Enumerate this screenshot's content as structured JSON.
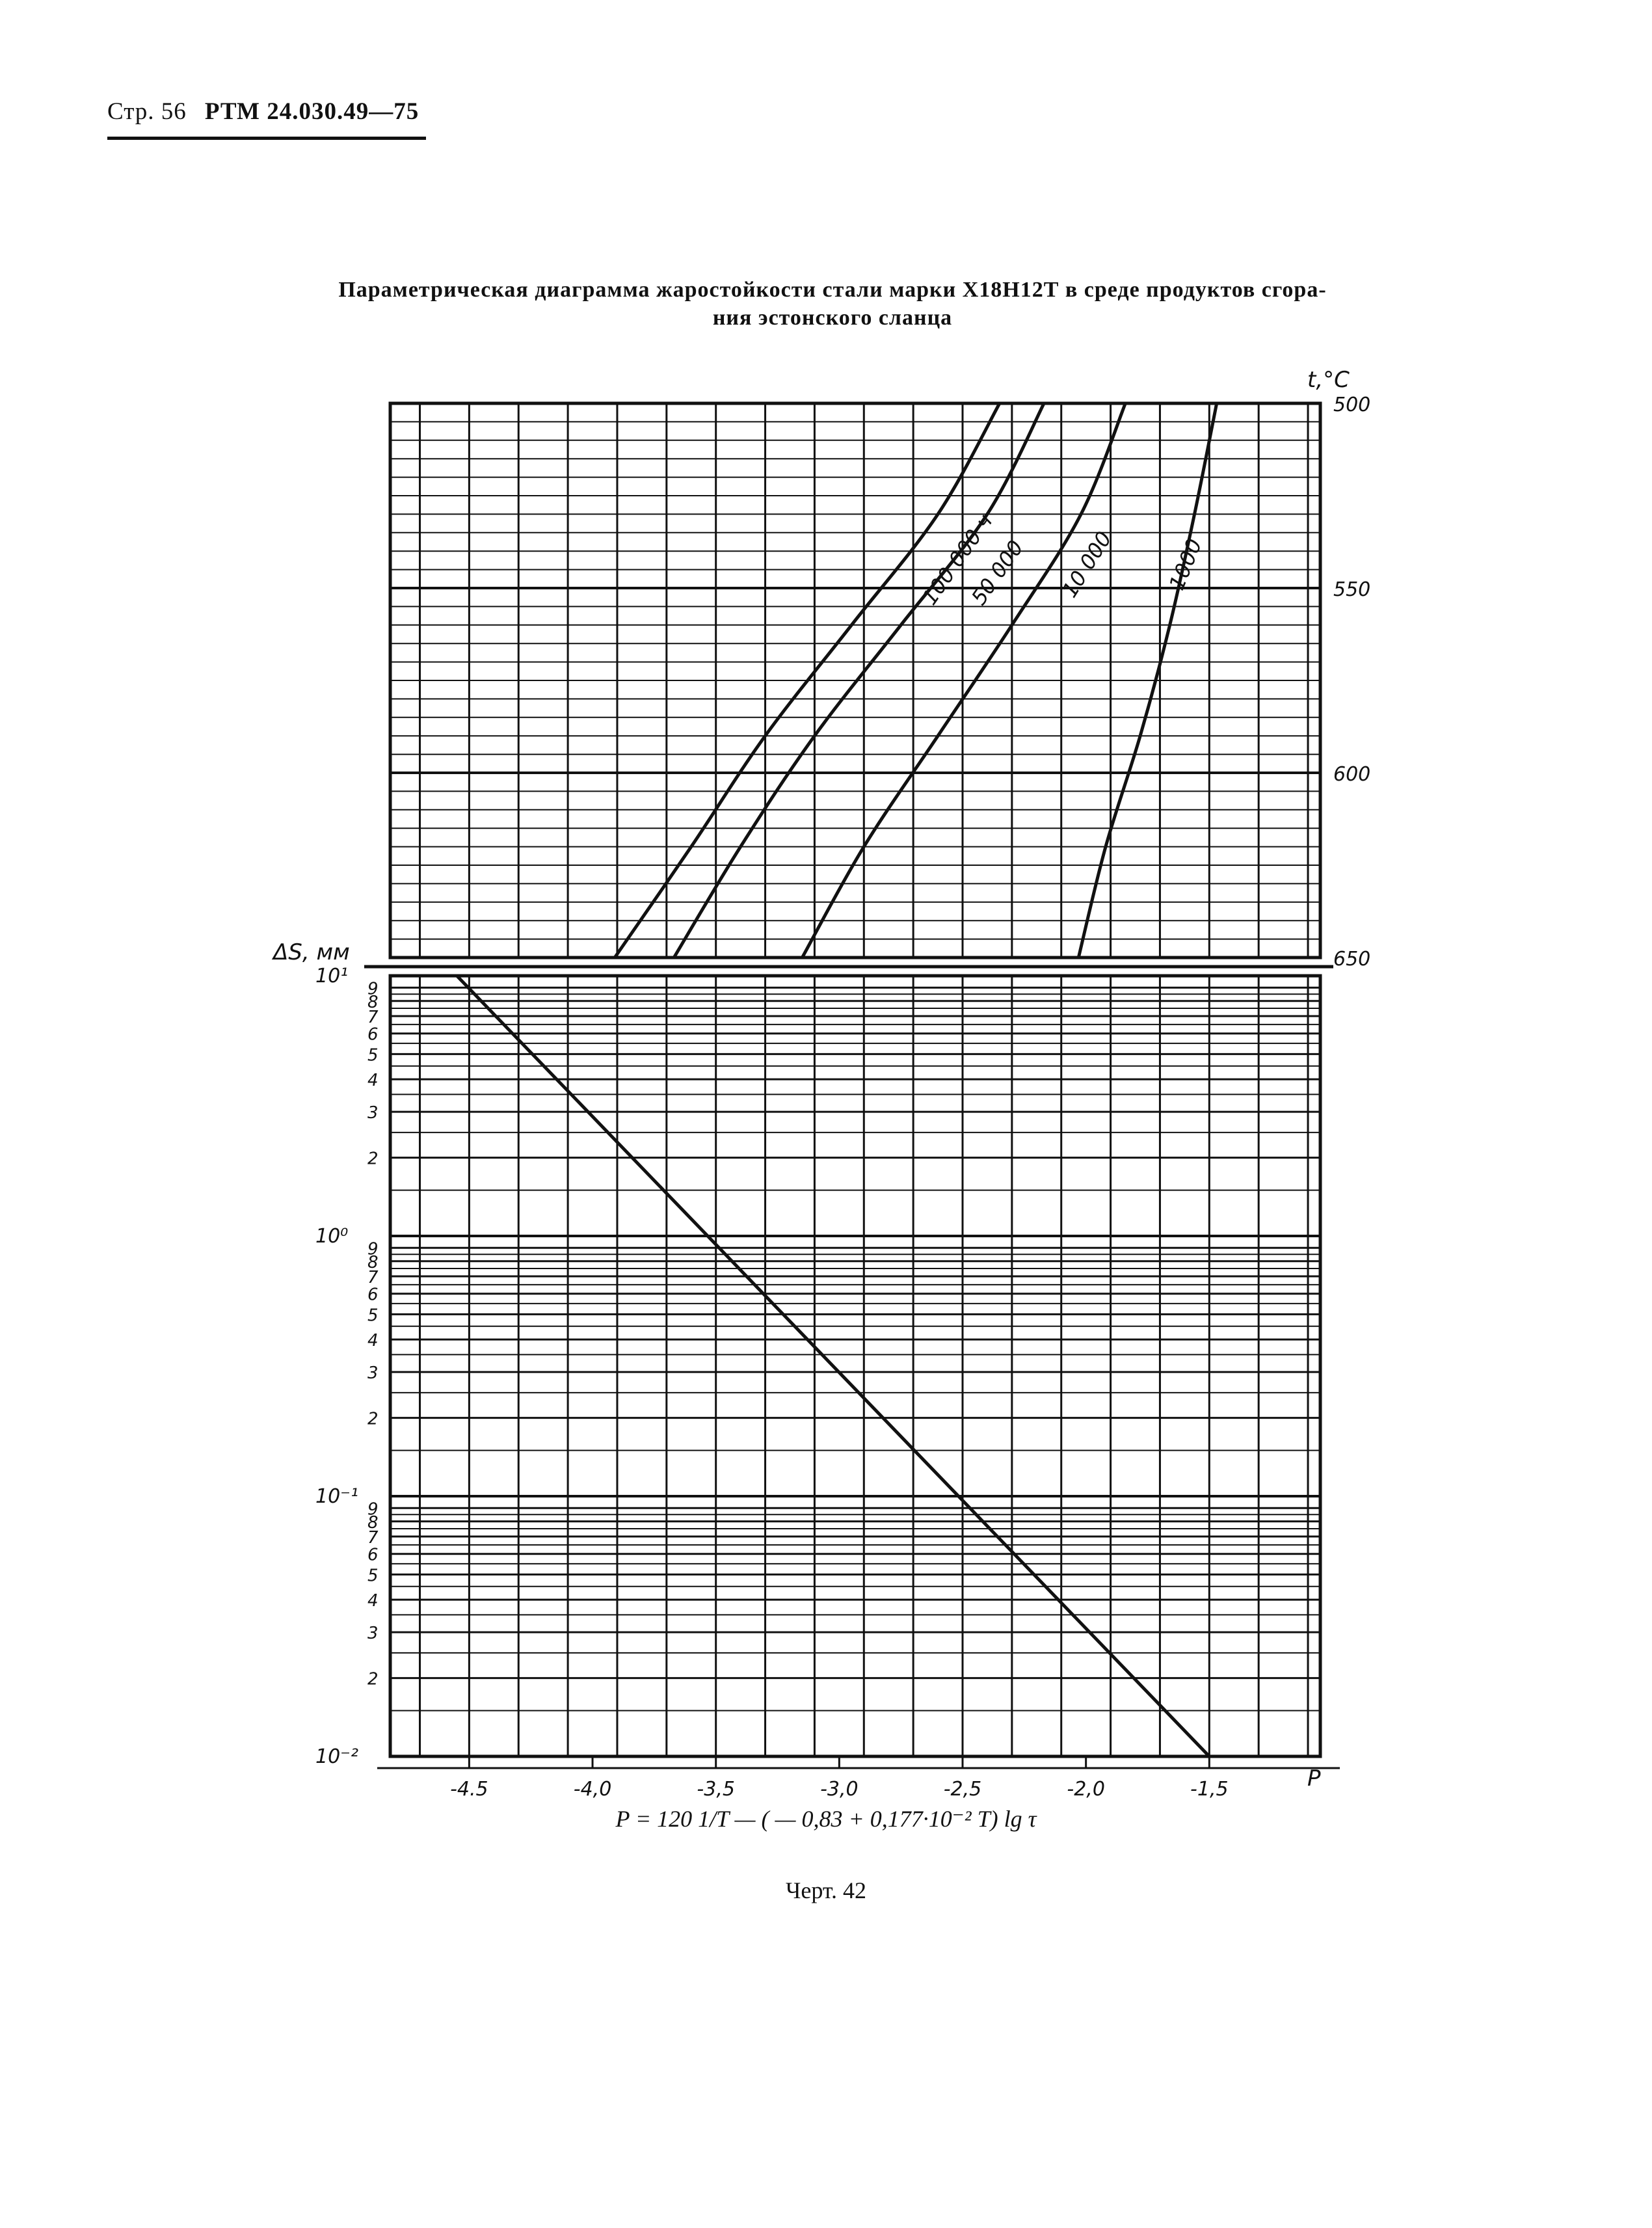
{
  "header": {
    "page": "Стр. 56",
    "code": "РТМ 24.030.49—75"
  },
  "title_line1": "Параметрическая диаграмма жаростойкости стали марки Х18Н12Т в среде продуктов сгора-",
  "title_line2": "ния эстонского сланца",
  "formula": "P = 120 1/T — ( — 0,83 + 0,177·10⁻² T) lg τ",
  "caption": "Черт. 42",
  "chart_data": [
    {
      "type": "line",
      "panel": "upper",
      "title": "",
      "xlabel": "",
      "ylabel": "t,°C",
      "xlim": [
        -4.82,
        -1.05
      ],
      "ylim": [
        650,
        500
      ],
      "ytick_labels": [
        "500",
        "550",
        "600",
        "650"
      ],
      "grid": true,
      "series": [
        {
          "name": "100 000 ч",
          "x": [
            -3.91,
            -3.6,
            -3.3,
            -2.95,
            -2.6,
            -2.35
          ],
          "y": [
            650,
            620,
            590,
            560,
            530,
            500
          ]
        },
        {
          "name": "50 000",
          "x": [
            -3.67,
            -3.4,
            -3.1,
            -2.75,
            -2.4,
            -2.17
          ],
          "y": [
            650,
            620,
            590,
            560,
            530,
            500
          ]
        },
        {
          "name": "10 000",
          "x": [
            -3.15,
            -2.9,
            -2.6,
            -2.3,
            -2.02,
            -1.84
          ],
          "y": [
            650,
            620,
            590,
            560,
            530,
            500
          ]
        },
        {
          "name": "1000",
          "x": [
            -2.03,
            -1.92,
            -1.78,
            -1.66,
            -1.56,
            -1.47
          ],
          "y": [
            650,
            620,
            590,
            560,
            530,
            500
          ]
        }
      ]
    },
    {
      "type": "line",
      "panel": "lower",
      "title": "",
      "xlabel": "P",
      "ylabel": "ΔS, мм",
      "xlim": [
        -4.82,
        -1.05
      ],
      "ylim": [
        0.01,
        10
      ],
      "yscale": "log",
      "xtick_labels": [
        "-4.5",
        "-4,0",
        "-3,5",
        "-3,0",
        "-2,5",
        "-2,0",
        "-1,5"
      ],
      "ydecade_labels": [
        "10⁻²",
        "10⁻¹",
        "10⁰",
        "10¹"
      ],
      "yminor_labels": [
        "2",
        "3",
        "4",
        "5",
        "6",
        "7",
        "8",
        "9"
      ],
      "grid": true,
      "series": [
        {
          "name": "",
          "x": [
            -4.55,
            -1.5
          ],
          "y": [
            10,
            0.01
          ]
        }
      ]
    }
  ]
}
